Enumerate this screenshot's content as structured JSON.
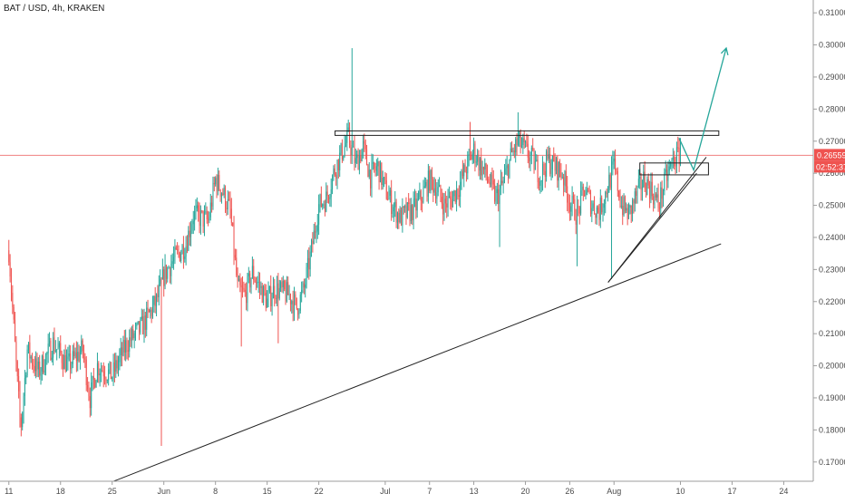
{
  "chart_data": {
    "type": "candlestick",
    "title": "BAT / USD, 4h, KRAKEN",
    "ylim": [
      0.164,
      0.314
    ],
    "y_ticks": [
      "0.31000",
      "0.30000",
      "0.29000",
      "0.28000",
      "0.27000",
      "0.26000",
      "0.25000",
      "0.24000",
      "0.23000",
      "0.22000",
      "0.21000",
      "0.20000",
      "0.19000",
      "0.18000",
      "0.17000"
    ],
    "x_ticks": [
      {
        "label": "11",
        "day": 0
      },
      {
        "label": "18",
        "day": 7
      },
      {
        "label": "25",
        "day": 14
      },
      {
        "label": "Jun",
        "day": 21
      },
      {
        "label": "8",
        "day": 28
      },
      {
        "label": "15",
        "day": 35
      },
      {
        "label": "22",
        "day": 42
      },
      {
        "label": "Jul",
        "day": 51
      },
      {
        "label": "7",
        "day": 57
      },
      {
        "label": "13",
        "day": 63
      },
      {
        "label": "20",
        "day": 70
      },
      {
        "label": "26",
        "day": 76
      },
      {
        "label": "Aug",
        "day": 82
      },
      {
        "label": "10",
        "day": 91
      },
      {
        "label": "17",
        "day": 98
      },
      {
        "label": "24",
        "day": 105
      }
    ],
    "xlim_days": [
      -1.2,
      109
    ],
    "current_price": "0.26559",
    "countdown": "02:52:37",
    "colors": {
      "up": "#26a69a",
      "down": "#ef5350",
      "price_line": "#f08080",
      "price_badge": "#ef5350",
      "countdown_badge": "#ef5350",
      "projection": "#26a69a",
      "drawing": "#222222"
    },
    "price_path": [
      [
        0,
        0.236
      ],
      [
        1,
        0.2
      ],
      [
        1.6,
        0.18
      ],
      [
        2.5,
        0.205
      ],
      [
        4,
        0.198
      ],
      [
        6,
        0.207
      ],
      [
        8,
        0.2
      ],
      [
        10,
        0.205
      ],
      [
        11,
        0.19
      ],
      [
        12,
        0.2
      ],
      [
        14,
        0.197
      ],
      [
        16,
        0.207
      ],
      [
        18,
        0.212
      ],
      [
        20,
        0.22
      ],
      [
        21,
        0.228
      ],
      [
        22,
        0.232
      ],
      [
        24,
        0.238
      ],
      [
        25,
        0.247
      ],
      [
        27,
        0.245
      ],
      [
        28,
        0.258
      ],
      [
        29,
        0.254
      ],
      [
        30,
        0.248
      ],
      [
        31,
        0.224
      ],
      [
        32,
        0.222
      ],
      [
        33,
        0.229
      ],
      [
        35,
        0.22
      ],
      [
        36,
        0.224
      ],
      [
        38,
        0.222
      ],
      [
        39,
        0.218
      ],
      [
        40,
        0.224
      ],
      [
        41,
        0.236
      ],
      [
        42,
        0.25
      ],
      [
        43,
        0.252
      ],
      [
        44,
        0.26
      ],
      [
        45,
        0.266
      ],
      [
        46,
        0.271
      ],
      [
        47,
        0.263
      ],
      [
        48,
        0.268
      ],
      [
        49,
        0.259
      ],
      [
        50,
        0.262
      ],
      [
        51,
        0.255
      ],
      [
        52,
        0.25
      ],
      [
        53,
        0.246
      ],
      [
        55,
        0.249
      ],
      [
        56,
        0.253
      ],
      [
        57,
        0.258
      ],
      [
        58,
        0.255
      ],
      [
        59,
        0.25
      ],
      [
        60,
        0.252
      ],
      [
        61,
        0.256
      ],
      [
        62,
        0.262
      ],
      [
        63,
        0.267
      ],
      [
        64,
        0.262
      ],
      [
        65,
        0.258
      ],
      [
        66,
        0.252
      ],
      [
        67,
        0.257
      ],
      [
        68,
        0.265
      ],
      [
        69,
        0.27
      ],
      [
        70,
        0.267
      ],
      [
        71,
        0.264
      ],
      [
        72,
        0.259
      ],
      [
        73,
        0.264
      ],
      [
        74,
        0.262
      ],
      [
        75,
        0.26
      ],
      [
        76,
        0.251
      ],
      [
        77,
        0.247
      ],
      [
        78,
        0.255
      ],
      [
        79,
        0.25
      ],
      [
        80,
        0.248
      ],
      [
        81,
        0.255
      ],
      [
        82,
        0.262
      ],
      [
        83,
        0.25
      ],
      [
        84,
        0.247
      ],
      [
        85,
        0.253
      ],
      [
        86,
        0.258
      ],
      [
        87,
        0.255
      ],
      [
        88,
        0.25
      ],
      [
        89,
        0.258
      ],
      [
        90,
        0.264
      ],
      [
        91,
        0.266
      ]
    ],
    "wick_spikes": [
      {
        "day": 1.6,
        "low": 0.178
      },
      {
        "day": 20.7,
        "low": 0.175
      },
      {
        "day": 31.5,
        "low": 0.206
      },
      {
        "day": 36.5,
        "low": 0.207
      },
      {
        "day": 46.5,
        "high": 0.299
      },
      {
        "day": 62.5,
        "high": 0.276
      },
      {
        "day": 66.5,
        "low": 0.237
      },
      {
        "day": 69,
        "high": 0.279
      },
      {
        "day": 77,
        "low": 0.231
      },
      {
        "day": 81.6,
        "low": 0.227
      },
      {
        "day": 91,
        "high": 0.271
      }
    ],
    "drawings": {
      "long_trendline": [
        [
          14.2,
          0.164
        ],
        [
          96.5,
          0.238
        ]
      ],
      "short_trendline": [
        [
          81.2,
          0.226
        ],
        [
          94.5,
          0.265
        ]
      ],
      "short_trendline_lower": [
        [
          81.2,
          0.226
        ],
        [
          93.2,
          0.26
        ]
      ],
      "resistance_box": [
        [
          44.2,
          0.2732
        ],
        [
          96.2,
          0.2718
        ]
      ],
      "small_box": [
        [
          85.5,
          0.2632
        ],
        [
          94.8,
          0.2595
        ]
      ],
      "projection": [
        [
          90.8,
          0.271
        ],
        [
          92.8,
          0.261
        ],
        [
          97.2,
          0.299
        ]
      ]
    }
  }
}
